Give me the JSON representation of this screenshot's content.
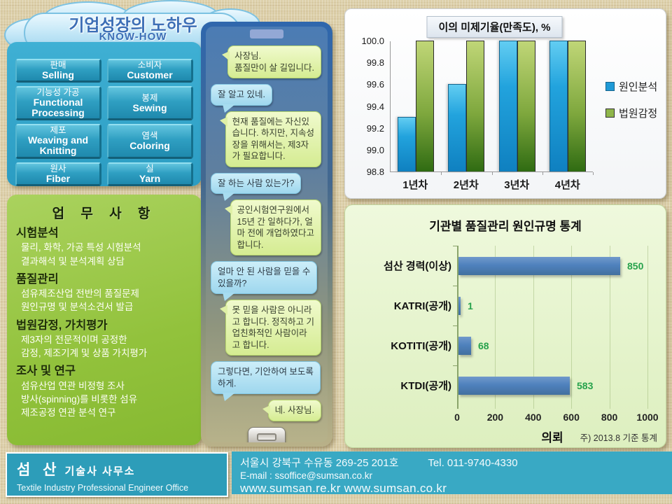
{
  "cloud": {
    "title_ko": "기업성장의 노하우",
    "title_en": "KNOW-HOW"
  },
  "process_boxes": [
    {
      "ko": "판매",
      "en": "Selling"
    },
    {
      "ko": "소비자",
      "en": "Customer"
    },
    {
      "ko": "기능성 가공",
      "en": "Functional Processing"
    },
    {
      "ko": "봉제",
      "en": "Sewing"
    },
    {
      "ko": "제포",
      "en": "Weaving and Knitting"
    },
    {
      "ko": "염색",
      "en": "Coloring"
    },
    {
      "ko": "원사",
      "en": "Fiber"
    },
    {
      "ko": "실",
      "en": "Yarn"
    }
  ],
  "services": {
    "title": "업 무 사 항",
    "sections": [
      {
        "heading": "시험분석",
        "lines": [
          "물리, 화학, 가공 특성 시험분석",
          "결과해석 및 분석계획 상담"
        ]
      },
      {
        "heading": "품질관리",
        "lines": [
          "섬유제조산업 전반의 품질문제",
          "원인규명 및 분석소견서 발급"
        ]
      },
      {
        "heading": "법원감정, 가치평가",
        "lines": [
          "제3자의 전문적이며 공정한",
          "감정, 제조기계 및 상품 가치평가"
        ]
      },
      {
        "heading": "조사 및 연구",
        "lines": [
          "섬유산업 연관 비정형 조사",
          "방사(spinning)를 비롯한 섬유",
          "제조공정 연관 분석 연구"
        ]
      }
    ]
  },
  "chat": {
    "bubbles": [
      {
        "side": "right",
        "style": "green",
        "text": "사장님.\n품질만이 살 길입니다."
      },
      {
        "side": "left",
        "style": "blue",
        "text": "잘 알고 있네."
      },
      {
        "side": "right",
        "style": "green",
        "text": "현재 품질에는 자신있\n습니다. 하지만, 지속성\n장을 위해서는, 제3자\n가 필요합니다."
      },
      {
        "side": "left",
        "style": "blue",
        "text": "잘 하는 사람 있는가?"
      },
      {
        "side": "right",
        "style": "green",
        "text": "공인시험연구원에서\n15년 간 일하다가, 얼\n마 전에 개업하였다고\n합니다."
      },
      {
        "side": "left",
        "style": "blue",
        "text": "얼마 안 된 사람을 믿을 수\n있을까?"
      },
      {
        "side": "right",
        "style": "green",
        "text": "못 믿을 사람은 아니라\n고 합니다. 정직하고 기\n업친화적인 사람이라\n고 합니다."
      },
      {
        "side": "left",
        "style": "blue",
        "text": "그렇다면, 기안하여 보도록\n하게."
      },
      {
        "side": "right",
        "style": "green",
        "text": "네.  사장님."
      }
    ]
  },
  "chart_data": [
    {
      "type": "bar",
      "title": "이의 미제기율(만족도), %",
      "categories": [
        "1년차",
        "2년차",
        "3년차",
        "4년차"
      ],
      "series": [
        {
          "name": "원인분석",
          "color": "#1f9ad7",
          "values": [
            99.3,
            99.6,
            100.0,
            100.0
          ]
        },
        {
          "name": "법원감정",
          "color": "#8fb64a",
          "values": [
            100.0,
            100.0,
            100.0,
            100.0
          ]
        }
      ],
      "ylim": [
        98.8,
        100.0
      ],
      "ytick_labels": [
        "98.8",
        "99.0",
        "99.2",
        "99.4",
        "99.6",
        "99.8",
        "100.0"
      ],
      "legend_position": "right",
      "grid": false
    },
    {
      "type": "bar-horizontal",
      "title": "기관별 품질관리 원인규명 통계",
      "categories": [
        "섬산 경력(이상)",
        "KATRI(공개)",
        "KOTITI(공개)",
        "KTDI(공개)"
      ],
      "values": [
        850,
        1,
        68,
        583
      ],
      "xlabel": "의뢰",
      "xlim": [
        0,
        1000
      ],
      "xticks": [
        0,
        200,
        400,
        600,
        800,
        1000
      ],
      "note": "주) 2013.8 기준 통계",
      "bar_color": "#4f81bd",
      "value_color": "#27a24c",
      "grid": true
    }
  ],
  "footer": {
    "org_ko": "섬 산",
    "org_ko2": "기술사 사무소",
    "org_en": "Textile Industry Professional Engineer Office",
    "address": "서울시 강북구 수유동 269-25 201호",
    "tel": "Tel. 011-9740-4330",
    "email": "E-mail : ssoffice@sumsan.co.kr",
    "urls": "www.sumsan.re.kr  www.sumsan.co.kr"
  }
}
